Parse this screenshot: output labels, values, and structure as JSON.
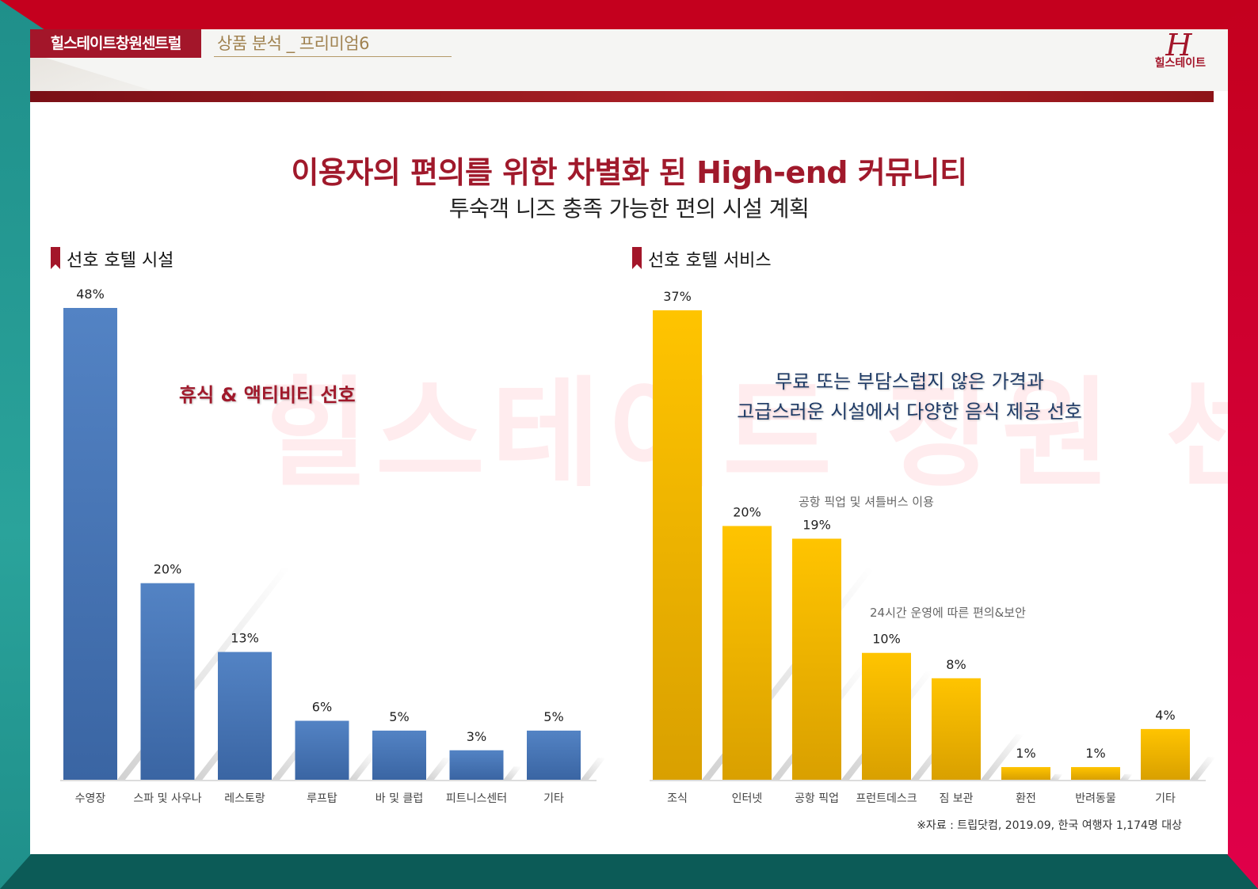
{
  "header": {
    "brand": "힐스테이트창원센트럴",
    "section": "상품 분석 _ 프리미엄6",
    "logo_mark": "H",
    "logo_text": "힐스테이트"
  },
  "main_title": "이용자의 편의를 위한 차별화 된 High-end 커뮤니티",
  "sub_title": "투숙객 니즈 충족 가능한 편의 시설 계획",
  "watermark": "힐스테이트 창원 센트럴",
  "annotations": {
    "left": "휴식 & 액티비티 선호",
    "right_line1": "무료 또는 부담스럽지 않은 가격과",
    "right_line2": "고급스러운 시설에서 다양한 음식 제공 선호",
    "note_pickup": "공항 픽업 및 셔틀버스 이용",
    "note_24h": "24시간 운영에 따른 편의&보안"
  },
  "source": "※자료 : 트립닷컴, 2019.09, 한국 여행자 1,174명 대상",
  "colors": {
    "blue_bar": "#4a78b8",
    "yellow_bar": "#f5b800",
    "accent": "#a3162a"
  },
  "chart_data": [
    {
      "type": "bar",
      "title": "선호 호텔 시설",
      "categories": [
        "수영장",
        "스파 및 사우나",
        "레스토랑",
        "루프탑",
        "바 및 클럽",
        "피트니스센터",
        "기타"
      ],
      "values": [
        48,
        20,
        13,
        6,
        5,
        3,
        5
      ],
      "value_labels": [
        "48%",
        "20%",
        "13%",
        "6%",
        "5%",
        "3%",
        "5%"
      ],
      "ylim": [
        0,
        48
      ],
      "grid": false
    },
    {
      "type": "bar",
      "title": "선호 호텔 서비스",
      "categories": [
        "조식",
        "인터넷",
        "공항 픽업",
        "프런트데스크",
        "짐 보관",
        "환전",
        "반려동물",
        "기타"
      ],
      "values": [
        37,
        20,
        19,
        10,
        8,
        1,
        1,
        4
      ],
      "value_labels": [
        "37%",
        "20%",
        "19%",
        "10%",
        "8%",
        "1%",
        "1%",
        "4%"
      ],
      "ylim": [
        0,
        37
      ],
      "grid": false
    }
  ]
}
